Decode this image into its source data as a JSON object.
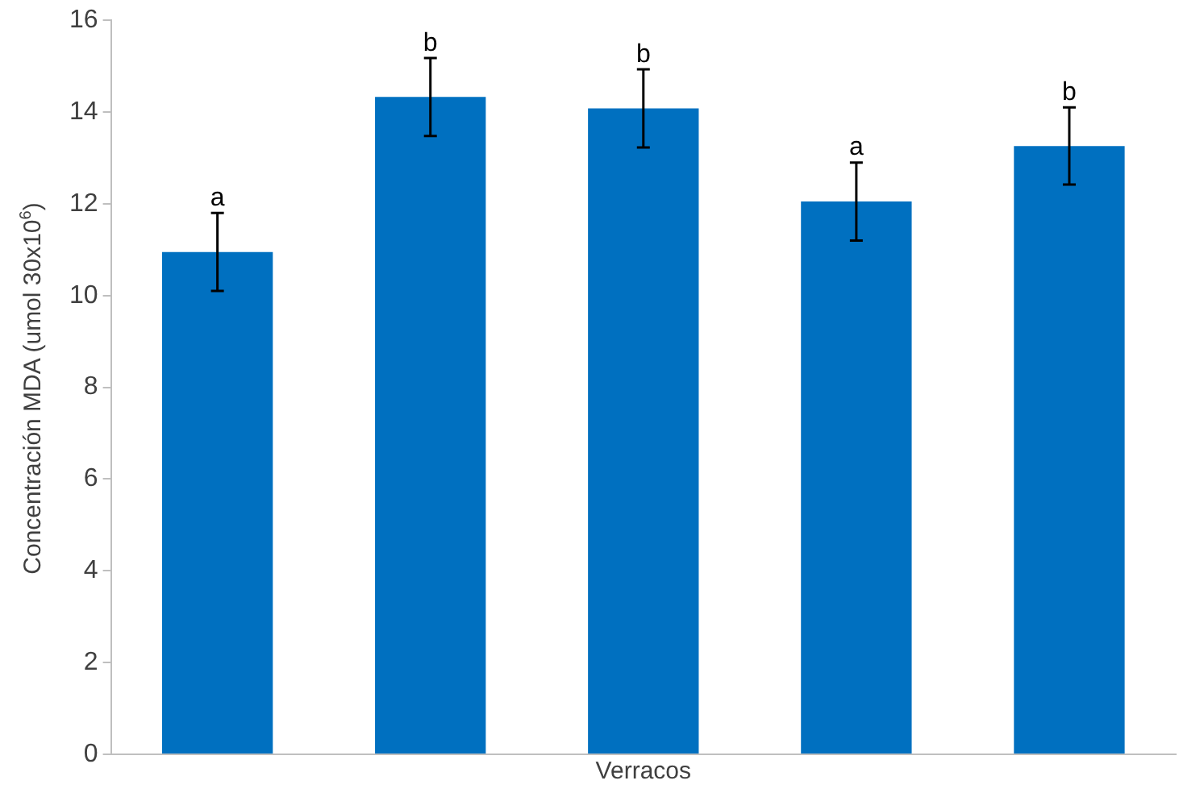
{
  "chart_data": {
    "type": "bar",
    "xlabel": "Verracos",
    "ylabel": "Concentración MDA (umol 30x10$^{6}$)",
    "categories": [
      null,
      null,
      null,
      null,
      null
    ],
    "values": [
      10.95,
      14.33,
      14.08,
      12.05,
      13.26
    ],
    "errors": [
      0.85,
      0.85,
      0.85,
      0.85,
      0.84
    ],
    "color": "#0070c0",
    "ylim": [
      0,
      16
    ],
    "yticks": [
      0,
      2,
      4,
      6,
      8,
      10,
      12,
      14,
      16
    ],
    "annotations": [
      "a",
      "b",
      "b",
      "a",
      "b"
    ],
    "grid": false,
    "legend": false
  }
}
